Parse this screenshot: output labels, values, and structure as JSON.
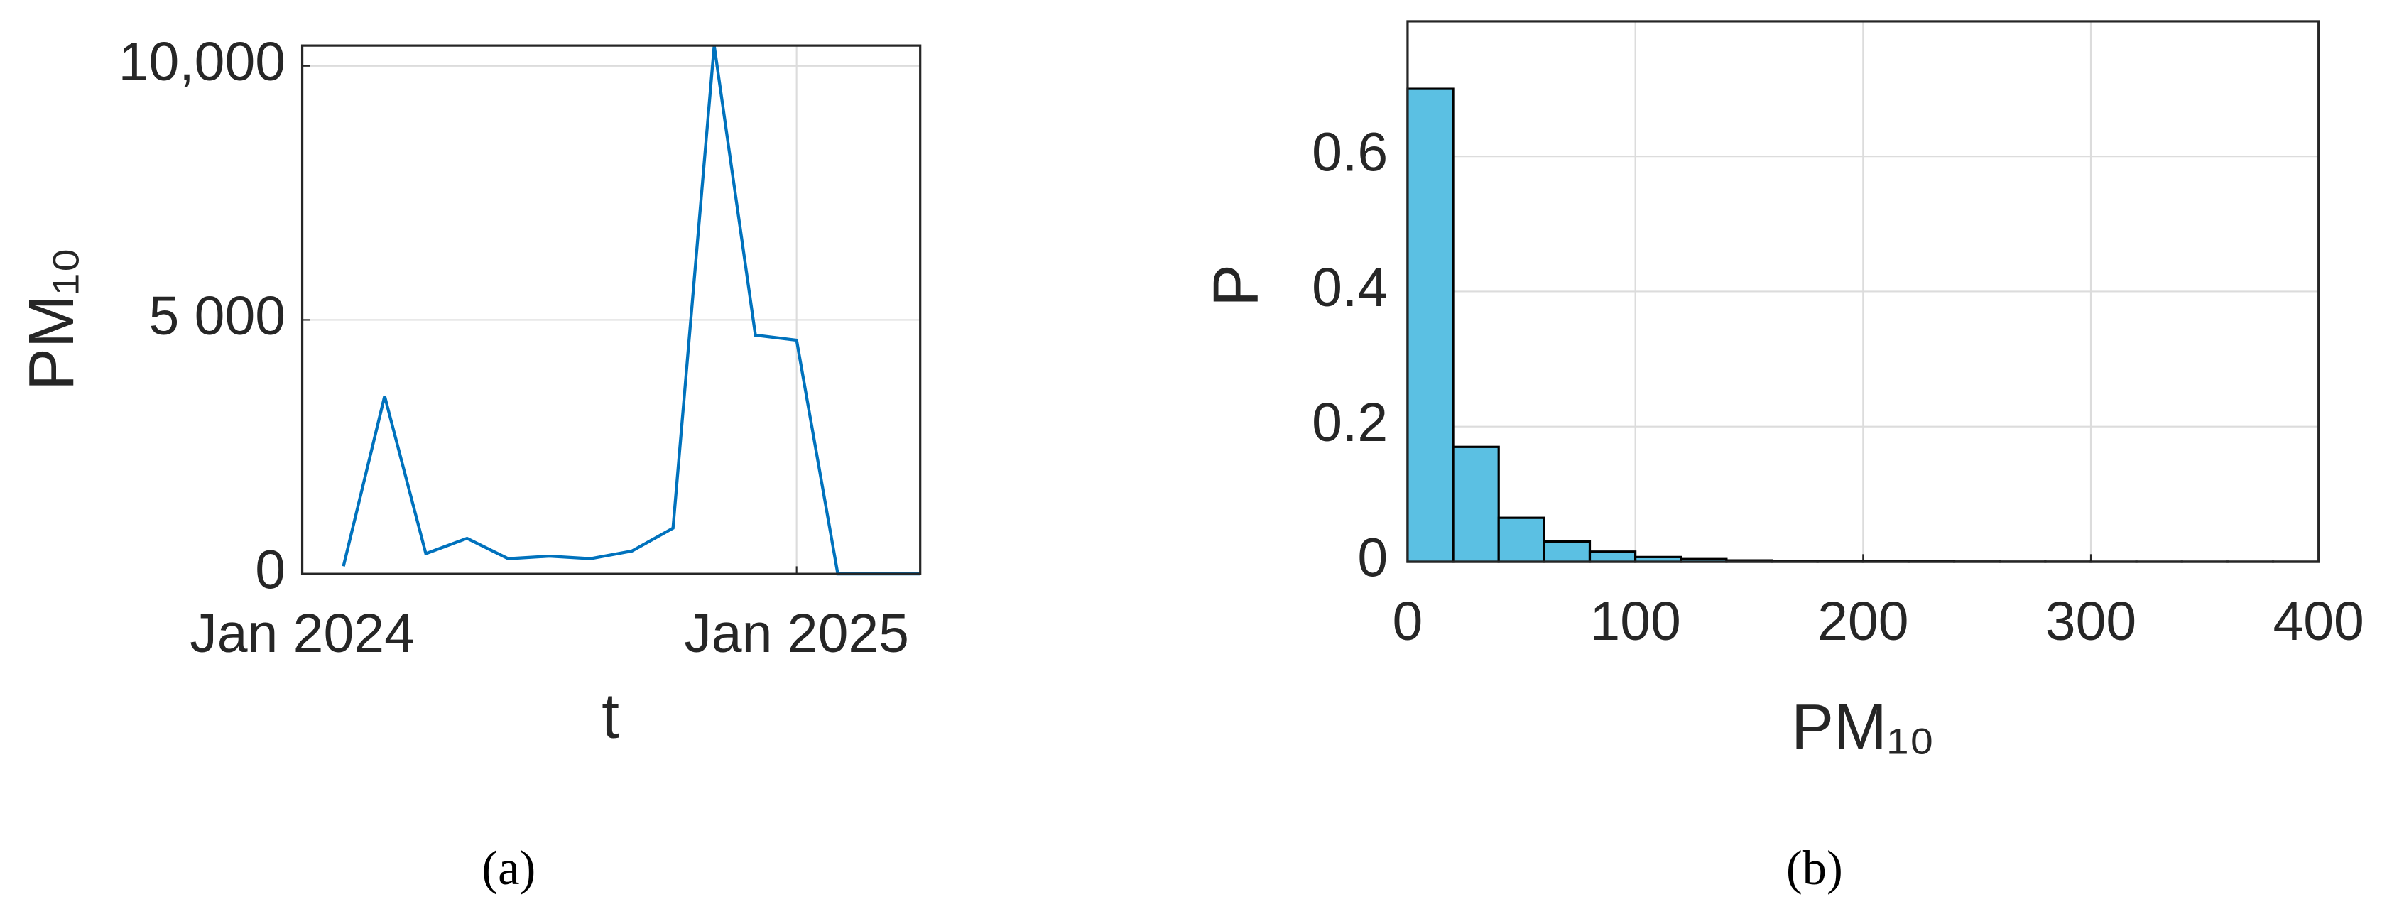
{
  "chart_data": [
    {
      "type": "line",
      "caption": "(a)",
      "x_label": "t",
      "y_label": "PM₁₀",
      "color": "#0072bd",
      "grid": true,
      "x": [
        "2024-02",
        "2024-03",
        "2024-04",
        "2024-05",
        "2024-06",
        "2024-07",
        "2024-08",
        "2024-09",
        "2024-10",
        "2024-11",
        "2024-12",
        "2025-01",
        "2025-02",
        "2025-03",
        "2025-04"
      ],
      "values": [
        150,
        3500,
        400,
        700,
        300,
        350,
        300,
        450,
        900,
        10400,
        4700,
        4600,
        0,
        0,
        0
      ],
      "xlim": [
        "2024-01",
        "2025-04"
      ],
      "xticks": [
        {
          "value": "2024-01",
          "label": "Jan 2024"
        },
        {
          "value": "2025-01",
          "label": "Jan 2025"
        }
      ],
      "ylim": [
        0,
        10400
      ],
      "yticks": [
        0,
        {
          "value": 5000,
          "label": "5 000"
        },
        {
          "value": 10000,
          "label": "10,000"
        }
      ]
    },
    {
      "type": "histogram",
      "caption": "(b)",
      "x_label": "PM₁₀",
      "y_label": "P",
      "color": "#5bc0e3",
      "grid": true,
      "bins": [
        0,
        20,
        40,
        60,
        80,
        100,
        120,
        140,
        160,
        180,
        200,
        220,
        240,
        260,
        280,
        300,
        320,
        340,
        360,
        380,
        400
      ],
      "values": [
        0.7,
        0.17,
        0.065,
        0.03,
        0.015,
        0.007,
        0.004,
        0.002,
        0.001,
        0.001,
        0.0005,
        0.0004,
        0.0003,
        0.0002,
        0.0002,
        0.0001,
        0.0001,
        0.0001,
        0.0001,
        0.0001
      ],
      "xlim": [
        0,
        400
      ],
      "xticks": [
        0,
        100,
        200,
        300,
        400
      ],
      "ylim": [
        0,
        0.8
      ],
      "yticks": [
        0,
        0.2,
        0.4,
        0.6
      ]
    }
  ]
}
